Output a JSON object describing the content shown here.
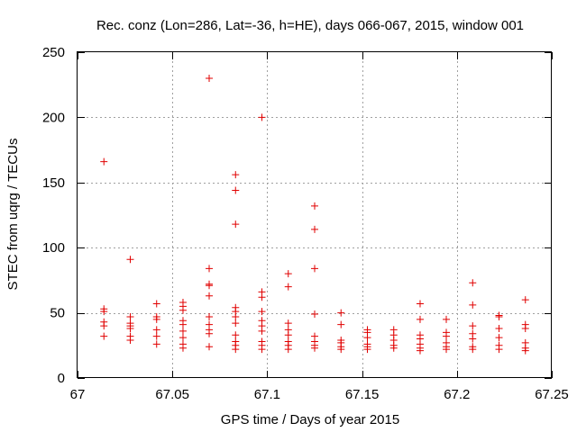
{
  "chart_data": {
    "type": "scatter",
    "title": "Rec. conz (Lon=286, Lat=-36, h=HE), days 066-067, 2015, window 001",
    "xlabel": "GPS time / Days of year 2015",
    "ylabel": "STEC from uqrg / TECUs",
    "xlim": [
      67,
      67.25
    ],
    "ylim": [
      0,
      250
    ],
    "xticks": [
      67,
      67.05,
      67.1,
      67.15,
      67.2,
      67.25
    ],
    "xtick_labels": [
      "67",
      "67.05",
      "67.1",
      "67.15",
      "67.2",
      "67.25"
    ],
    "yticks": [
      0,
      50,
      100,
      150,
      200,
      250
    ],
    "ytick_labels": [
      "0",
      "50",
      "100",
      "150",
      "200",
      "250"
    ],
    "grid": true,
    "marker": "+",
    "color": "#e00000",
    "points": [
      [
        67.0139,
        166
      ],
      [
        67.0139,
        53
      ],
      [
        67.0139,
        51
      ],
      [
        67.0139,
        43
      ],
      [
        67.0139,
        40
      ],
      [
        67.0139,
        32
      ],
      [
        67.0278,
        91
      ],
      [
        67.0278,
        47
      ],
      [
        67.0278,
        42
      ],
      [
        67.0278,
        40
      ],
      [
        67.0278,
        38
      ],
      [
        67.0278,
        32
      ],
      [
        67.0278,
        29
      ],
      [
        67.0417,
        57
      ],
      [
        67.0417,
        47
      ],
      [
        67.0417,
        45
      ],
      [
        67.0417,
        37
      ],
      [
        67.0417,
        32
      ],
      [
        67.0417,
        26
      ],
      [
        67.0556,
        58
      ],
      [
        67.0556,
        55
      ],
      [
        67.0556,
        52
      ],
      [
        67.0556,
        44
      ],
      [
        67.0556,
        41
      ],
      [
        67.0556,
        36
      ],
      [
        67.0556,
        31
      ],
      [
        67.0556,
        26
      ],
      [
        67.0556,
        23
      ],
      [
        67.0694,
        230
      ],
      [
        67.0694,
        84
      ],
      [
        67.0694,
        72
      ],
      [
        67.0694,
        71
      ],
      [
        67.0694,
        63
      ],
      [
        67.0694,
        47
      ],
      [
        67.0694,
        41
      ],
      [
        67.0694,
        37
      ],
      [
        67.0694,
        34
      ],
      [
        67.0694,
        24
      ],
      [
        67.0833,
        156
      ],
      [
        67.0833,
        144
      ],
      [
        67.0833,
        118
      ],
      [
        67.0833,
        54
      ],
      [
        67.0833,
        51
      ],
      [
        67.0833,
        47
      ],
      [
        67.0833,
        42
      ],
      [
        67.0833,
        33
      ],
      [
        67.0833,
        28
      ],
      [
        67.0833,
        25
      ],
      [
        67.0833,
        22
      ],
      [
        67.0972,
        200
      ],
      [
        67.0972,
        66
      ],
      [
        67.0972,
        62
      ],
      [
        67.0972,
        51
      ],
      [
        67.0972,
        44
      ],
      [
        67.0972,
        40
      ],
      [
        67.0972,
        36
      ],
      [
        67.0972,
        28
      ],
      [
        67.0972,
        25
      ],
      [
        67.0972,
        22
      ],
      [
        67.1111,
        80
      ],
      [
        67.1111,
        70
      ],
      [
        67.1111,
        42
      ],
      [
        67.1111,
        37
      ],
      [
        67.1111,
        33
      ],
      [
        67.1111,
        28
      ],
      [
        67.1111,
        25
      ],
      [
        67.1111,
        22
      ],
      [
        67.125,
        132
      ],
      [
        67.125,
        114
      ],
      [
        67.125,
        84
      ],
      [
        67.125,
        49
      ],
      [
        67.125,
        32
      ],
      [
        67.125,
        28
      ],
      [
        67.125,
        25
      ],
      [
        67.125,
        23
      ],
      [
        67.1389,
        50
      ],
      [
        67.1389,
        41
      ],
      [
        67.1389,
        29
      ],
      [
        67.1389,
        27
      ],
      [
        67.1389,
        24
      ],
      [
        67.1389,
        22
      ],
      [
        67.1528,
        37
      ],
      [
        67.1528,
        35
      ],
      [
        67.1528,
        31
      ],
      [
        67.1528,
        26
      ],
      [
        67.1528,
        24
      ],
      [
        67.1528,
        22
      ],
      [
        67.1667,
        37
      ],
      [
        67.1667,
        33
      ],
      [
        67.1667,
        29
      ],
      [
        67.1667,
        25
      ],
      [
        67.1667,
        23
      ],
      [
        67.1806,
        57
      ],
      [
        67.1806,
        45
      ],
      [
        67.1806,
        33
      ],
      [
        67.1806,
        30
      ],
      [
        67.1806,
        26
      ],
      [
        67.1806,
        23
      ],
      [
        67.1806,
        21
      ],
      [
        67.1944,
        45
      ],
      [
        67.1944,
        35
      ],
      [
        67.1944,
        32
      ],
      [
        67.1944,
        27
      ],
      [
        67.1944,
        24
      ],
      [
        67.1944,
        22
      ],
      [
        67.2083,
        73
      ],
      [
        67.2083,
        56
      ],
      [
        67.2083,
        40
      ],
      [
        67.2083,
        34
      ],
      [
        67.2083,
        30
      ],
      [
        67.2083,
        24
      ],
      [
        67.2083,
        22
      ],
      [
        67.2222,
        48
      ],
      [
        67.2222,
        47
      ],
      [
        67.2222,
        38
      ],
      [
        67.2222,
        31
      ],
      [
        67.2222,
        25
      ],
      [
        67.2222,
        22
      ],
      [
        67.2361,
        60
      ],
      [
        67.2361,
        41
      ],
      [
        67.2361,
        38
      ],
      [
        67.2361,
        27
      ],
      [
        67.2361,
        23
      ],
      [
        67.2361,
        21
      ]
    ]
  }
}
